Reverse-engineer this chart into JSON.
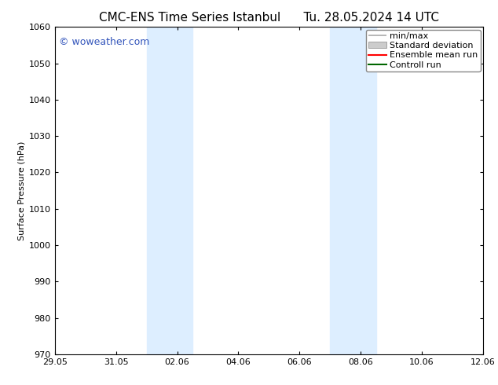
{
  "title_left": "CMC-ENS Time Series Istanbul",
  "title_right": "Tu. 28.05.2024 14 UTC",
  "ylabel": "Surface Pressure (hPa)",
  "ylim": [
    970,
    1060
  ],
  "yticks": [
    970,
    980,
    990,
    1000,
    1010,
    1020,
    1030,
    1040,
    1050,
    1060
  ],
  "xlabel_ticks": [
    "29.05",
    "31.05",
    "02.06",
    "04.06",
    "06.06",
    "08.06",
    "10.06",
    "12.06"
  ],
  "xlabel_tick_positions": [
    0,
    2,
    4,
    6,
    8,
    10,
    12,
    14
  ],
  "bg_color": "#ffffff",
  "plot_bg_color": "#ffffff",
  "shaded_bands": [
    {
      "x_start": 3.0,
      "x_end": 4.5,
      "color": "#ddeeff"
    },
    {
      "x_start": 9.0,
      "x_end": 10.5,
      "color": "#ddeeff"
    }
  ],
  "watermark_text": "© woweather.com",
  "watermark_color": "#3355bb",
  "legend_entries": [
    {
      "label": "min/max",
      "color": "#aaaaaa",
      "style": "minmax"
    },
    {
      "label": "Standard deviation",
      "color": "#cccccc",
      "style": "stddev"
    },
    {
      "label": "Ensemble mean run",
      "color": "#ff0000",
      "style": "line"
    },
    {
      "label": "Controll run",
      "color": "#006600",
      "style": "line"
    }
  ],
  "title_fontsize": 11,
  "axis_label_fontsize": 8,
  "tick_fontsize": 8,
  "watermark_fontsize": 9,
  "legend_fontsize": 8,
  "grid_color": "#dddddd",
  "x_start": 0,
  "x_end": 14
}
